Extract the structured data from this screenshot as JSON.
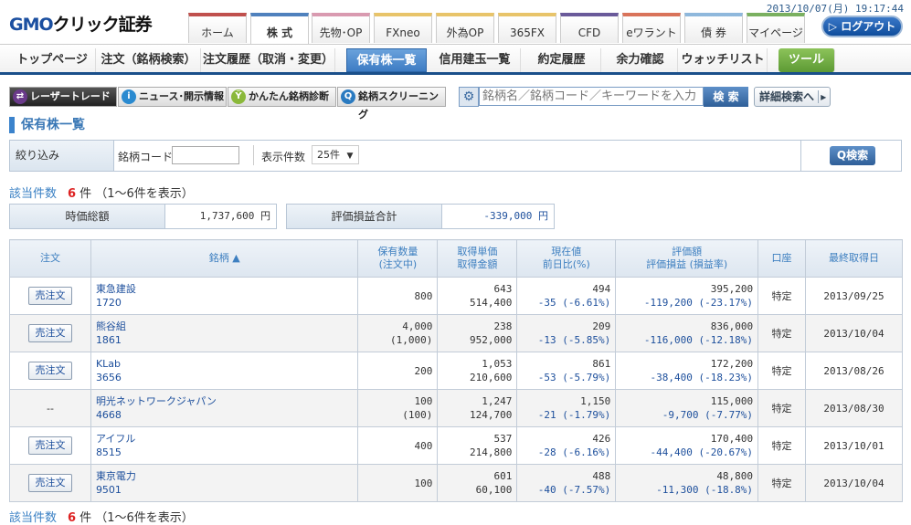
{
  "header": {
    "logo": "GMOクリック証券",
    "datetime": "2013/10/07(月) 19:17:44",
    "logout": "ログアウト"
  },
  "tabs": [
    {
      "label": "ホーム",
      "color": "#c0504d"
    },
    {
      "label": "株 式",
      "color": "#4f81bd"
    },
    {
      "label": "先物･OP",
      "color": "#d99ab0"
    },
    {
      "label": "FXneo",
      "color": "#e8c46a"
    },
    {
      "label": "外為OP",
      "color": "#e8c46a"
    },
    {
      "label": "365FX",
      "color": "#e8c46a"
    },
    {
      "label": "CFD",
      "color": "#6a5a9a"
    },
    {
      "label": "eワラント",
      "color": "#d9735a"
    },
    {
      "label": "債 券",
      "color": "#8fb8dc"
    },
    {
      "label": "マイページ",
      "color": "#7ab060"
    }
  ],
  "nav": [
    "トップページ",
    "注文（銘柄検索）",
    "注文履歴（取消・変更）",
    "保有株一覧",
    "信用建玉一覧",
    "約定履歴",
    "余力確認",
    "ウォッチリスト",
    "ツール"
  ],
  "toolbar": {
    "laser": "レーザートレード",
    "news": "ニュース･開示情報",
    "diag": "かんたん銘柄診断",
    "screen": "銘柄スクリーニング",
    "search_placeholder": "銘柄名／銘柄コード／キーワードを入力",
    "search": "検 索",
    "detail": "詳細検索へ"
  },
  "page_title": "保有株一覧",
  "filter": {
    "label": "絞り込み",
    "code_label": "銘柄コード",
    "code_value": "",
    "count_label": "表示件数",
    "count_value": "25件",
    "search": "検索"
  },
  "count": {
    "label": "該当件数",
    "num": "6",
    "unit": "件",
    "range": "（1～6件を表示）"
  },
  "summary": {
    "total_label": "時価総額",
    "total": "1,737,600 円",
    "pl_label": "評価損益合計",
    "pl": "-339,000 円"
  },
  "table": {
    "headers": [
      "注文",
      "銘柄 ▲",
      "保有数量\n(注文中)",
      "取得単価\n取得金額",
      "現在値\n前日比(%)",
      "評価額\n評価損益 (損益率)",
      "口座",
      "最終取得日"
    ],
    "rows": [
      {
        "order": "売注文",
        "name": "東急建設",
        "code": "1720",
        "qty": "800",
        "qty2": "",
        "cost": "643",
        "cost2": "514,400",
        "price": "494",
        "chg": "-35 (-6.61%)",
        "val": "395,200",
        "pl": "-119,200 (-23.17%)",
        "acct": "特定",
        "date": "2013/09/25"
      },
      {
        "order": "売注文",
        "name": "熊谷組",
        "code": "1861",
        "qty": "4,000",
        "qty2": "(1,000)",
        "cost": "238",
        "cost2": "952,000",
        "price": "209",
        "chg": "-13 (-5.85%)",
        "val": "836,000",
        "pl": "-116,000 (-12.18%)",
        "acct": "特定",
        "date": "2013/10/04"
      },
      {
        "order": "売注文",
        "name": "KLab",
        "code": "3656",
        "qty": "200",
        "qty2": "",
        "cost": "1,053",
        "cost2": "210,600",
        "price": "861",
        "chg": "-53 (-5.79%)",
        "val": "172,200",
        "pl": "-38,400 (-18.23%)",
        "acct": "特定",
        "date": "2013/08/26"
      },
      {
        "order": "--",
        "name": "明光ネットワークジャパン",
        "code": "4668",
        "qty": "100",
        "qty2": "(100)",
        "cost": "1,247",
        "cost2": "124,700",
        "price": "1,150",
        "chg": "-21 (-1.79%)",
        "val": "115,000",
        "pl": "-9,700 (-7.77%)",
        "acct": "特定",
        "date": "2013/08/30"
      },
      {
        "order": "売注文",
        "name": "アイフル",
        "code": "8515",
        "qty": "400",
        "qty2": "",
        "cost": "537",
        "cost2": "214,800",
        "price": "426",
        "chg": "-28 (-6.16%)",
        "val": "170,400",
        "pl": "-44,400 (-20.67%)",
        "acct": "特定",
        "date": "2013/10/01"
      },
      {
        "order": "売注文",
        "name": "東京電力",
        "code": "9501",
        "qty": "100",
        "qty2": "",
        "cost": "601",
        "cost2": "60,100",
        "price": "488",
        "chg": "-40 (-7.57%)",
        "val": "48,800",
        "pl": "-11,300 (-18.8%)",
        "acct": "特定",
        "date": "2013/10/04"
      }
    ]
  }
}
